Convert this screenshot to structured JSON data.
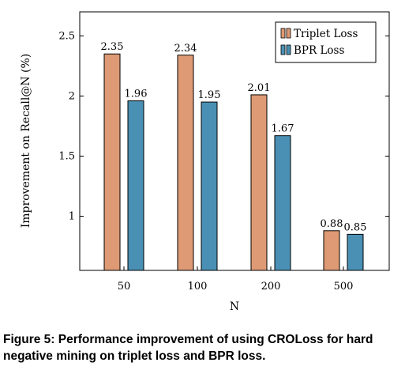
{
  "chart_data": {
    "type": "bar",
    "categories": [
      "50",
      "100",
      "200",
      "500"
    ],
    "series": [
      {
        "name": "Triplet Loss",
        "values": [
          2.35,
          2.34,
          2.01,
          0.88
        ],
        "labels": [
          "2.35",
          "2.34",
          "2.01",
          "0.88"
        ],
        "color": "#dd9a74"
      },
      {
        "name": "BPR Loss",
        "values": [
          1.96,
          1.95,
          1.67,
          0.85
        ],
        "labels": [
          "1.96",
          "1.95",
          "1.67",
          "0.85"
        ],
        "color": "#4a90b4"
      }
    ],
    "title": "",
    "xlabel": "N",
    "ylabel": "Improvement on Recall@N (%)",
    "ylim": [
      0.55,
      2.7
    ],
    "yticks": [
      1,
      1.5,
      2,
      2.5
    ],
    "ytick_labels": [
      "1",
      "1.5",
      "2",
      "2.5"
    ],
    "grid": false,
    "legend_position": "top-right"
  },
  "caption": "Figure 5: Performance improvement of using CROLoss for hard negative mining on triplet loss and BPR loss."
}
